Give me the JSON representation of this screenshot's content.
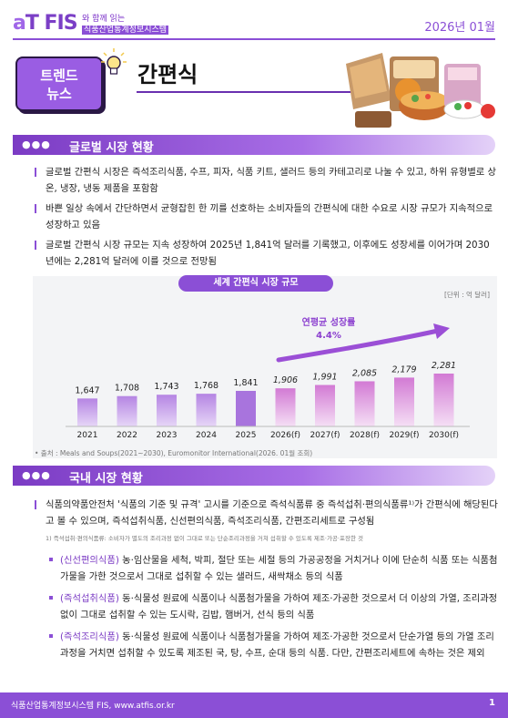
{
  "header": {
    "logo": "aT FIS",
    "tagline_1": "와 함께 읽는",
    "tagline_2": "식품산업통계정보시스템",
    "issue_date": "2026년 01월"
  },
  "badge": {
    "line1": "트렌드",
    "line2": "뉴스"
  },
  "title": "간편식",
  "section1": {
    "dots": "●●●",
    "title": "글로벌 시장 현황",
    "bullets": [
      "글로벌 간편식 시장은 즉석조리식품, 수프, 피자, 식품 키트, 샐러드 등의 카테고리로 나눌 수 있고, 하위 유형별로 상온, 냉장, 냉동 제품을 포함함",
      "바쁜 일상 속에서 간단하면서 균형잡힌 한 끼를 선호하는 소비자들의 간편식에 대한 수요로 시장 규모가 지속적으로 성장하고 있음",
      "글로벌 간편식 시장 규모는 지속 성장하여 2025년 1,841억 달러를 기록했고, 이후에도 성장세를 이어가며 2030년에는 2,281억 달러에 이를 것으로 전망됨"
    ]
  },
  "chart_data": {
    "type": "bar",
    "title": "세계 간편식 시장 규모",
    "unit": "[단위 : 억 달러]",
    "categories": [
      "2021",
      "2022",
      "2023",
      "2024",
      "2025",
      "2026(f)",
      "2027(f)",
      "2028(f)",
      "2029(f)",
      "2030(f)"
    ],
    "values": [
      1647,
      1708,
      1743,
      1768,
      1841,
      1906,
      1991,
      2085,
      2179,
      2281
    ],
    "value_labels": [
      "1,647",
      "1,708",
      "1,743",
      "1,768",
      "1,841",
      "1,906",
      "1,991",
      "2,085",
      "2,179",
      "2,281"
    ],
    "annotation_label": "연평균 성장률",
    "annotation_value": "4.4%",
    "source": "• 출처 : Meals and Soups(2021~2030), Euromonitor International(2026. 01월 조회)",
    "colors": {
      "actual_light": "#e6d6f7",
      "actual_dark": "#b585e3",
      "forecast_light": "#f5dff5",
      "forecast_dark": "#d27ad4",
      "current": "#a874dd",
      "arrow": "#9b4fd6"
    }
  },
  "section2": {
    "dots": "●●●",
    "title": "국내 시장 현황",
    "main_bullet": "식품의약품안전처 '식품의 기준 및 규격' 고시를 기준으로 즉석식품류 중 즉석섭취·편의식품류¹⁾가 간편식에 해당된다고 볼 수 있으며, 즉석섭취식품, 신선편의식품, 즉석조리식품, 간편조리세트로 구성됨",
    "footnote": "1) 즉석섭취·편의식품류: 소비자가 별도의 조리과정 없이 그대로 또는 단순조리과정을 거쳐 섭취할 수 있도록 제조·가공·포장한 것",
    "items": [
      {
        "label": "(신선편의식품)",
        "text": " 농·임산물을 세척, 박피, 절단 또는 세절 등의 가공공정을 거치거나 이에 단순히 식품 또는 식품첨가물을 가한 것으로서 그대로 섭취할 수 있는 샐러드, 새싹채소 등의 식품"
      },
      {
        "label": "(즉석섭취식품)",
        "text": " 동·식물성 원료에 식품이나 식품첨가물을 가하여 제조·가공한 것으로서 더 이상의 가열, 조리과정 없이 그대로 섭취할 수 있는 도시락, 김밥, 햄버거, 선식 등의 식품"
      },
      {
        "label": "(즉석조리식품)",
        "text": " 동·식물성 원료에 식품이나 식품첨가물을 가하여 제조·가공한 것으로서 단순가열 등의 가열 조리과정을 거치면 섭취할 수 있도록 제조된 국, 탕, 수프, 순대 등의 식품. 다만, 간편조리세트에 속하는 것은 제외"
      }
    ]
  },
  "footer": {
    "text": "식품산업통계정보시스템 FIS, www.atfis.or.kr",
    "page": "1"
  }
}
